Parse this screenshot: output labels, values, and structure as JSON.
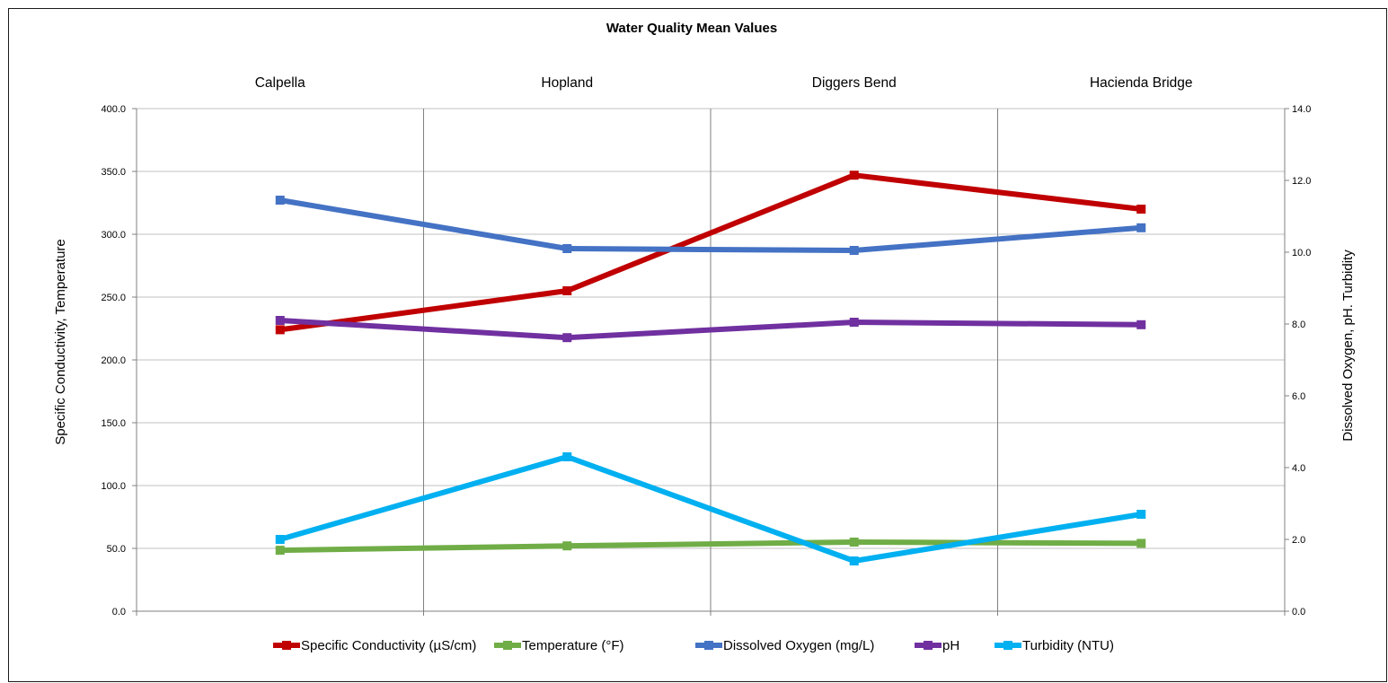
{
  "chart_data": {
    "type": "line",
    "title": "Water Quality Mean Values",
    "categories": [
      "Calpella",
      "Hopland",
      "Diggers Bend",
      "Hacienda Bridge"
    ],
    "y_left": {
      "label": "Specific Conductivity, Temperature",
      "range": [
        0,
        400
      ],
      "ticks": [
        "0.0",
        "50.0",
        "100.0",
        "150.0",
        "200.0",
        "250.0",
        "300.0",
        "350.0",
        "400.0"
      ]
    },
    "y_right": {
      "label": "Dissolved Oxygen, pH. Turbidity",
      "range": [
        0,
        14
      ],
      "ticks": [
        "0.0",
        "2.0",
        "4.0",
        "6.0",
        "8.0",
        "10.0",
        "12.0",
        "14.0"
      ]
    },
    "grid": true,
    "legend_position": "bottom",
    "series": [
      {
        "name": "Specific Conductivity (µS/cm)",
        "axis": "left",
        "color": "#c00000",
        "values": [
          224,
          255,
          347,
          320
        ]
      },
      {
        "name": "Temperature  (°F)",
        "axis": "left",
        "color": "#70ad47",
        "values": [
          48.5,
          52,
          55,
          54
        ]
      },
      {
        "name": "Dissolved Oxygen (mg/L)",
        "axis": "right",
        "color": "#4472c4",
        "values": [
          11.45,
          10.1,
          10.05,
          10.68
        ]
      },
      {
        "name": "pH",
        "axis": "right",
        "color": "#7030a0",
        "values": [
          8.1,
          7.62,
          8.05,
          7.98
        ]
      },
      {
        "name": "Turbidity (NTU)",
        "axis": "right",
        "color": "#00b0f0",
        "values": [
          2.0,
          4.3,
          1.4,
          2.7
        ]
      }
    ]
  }
}
